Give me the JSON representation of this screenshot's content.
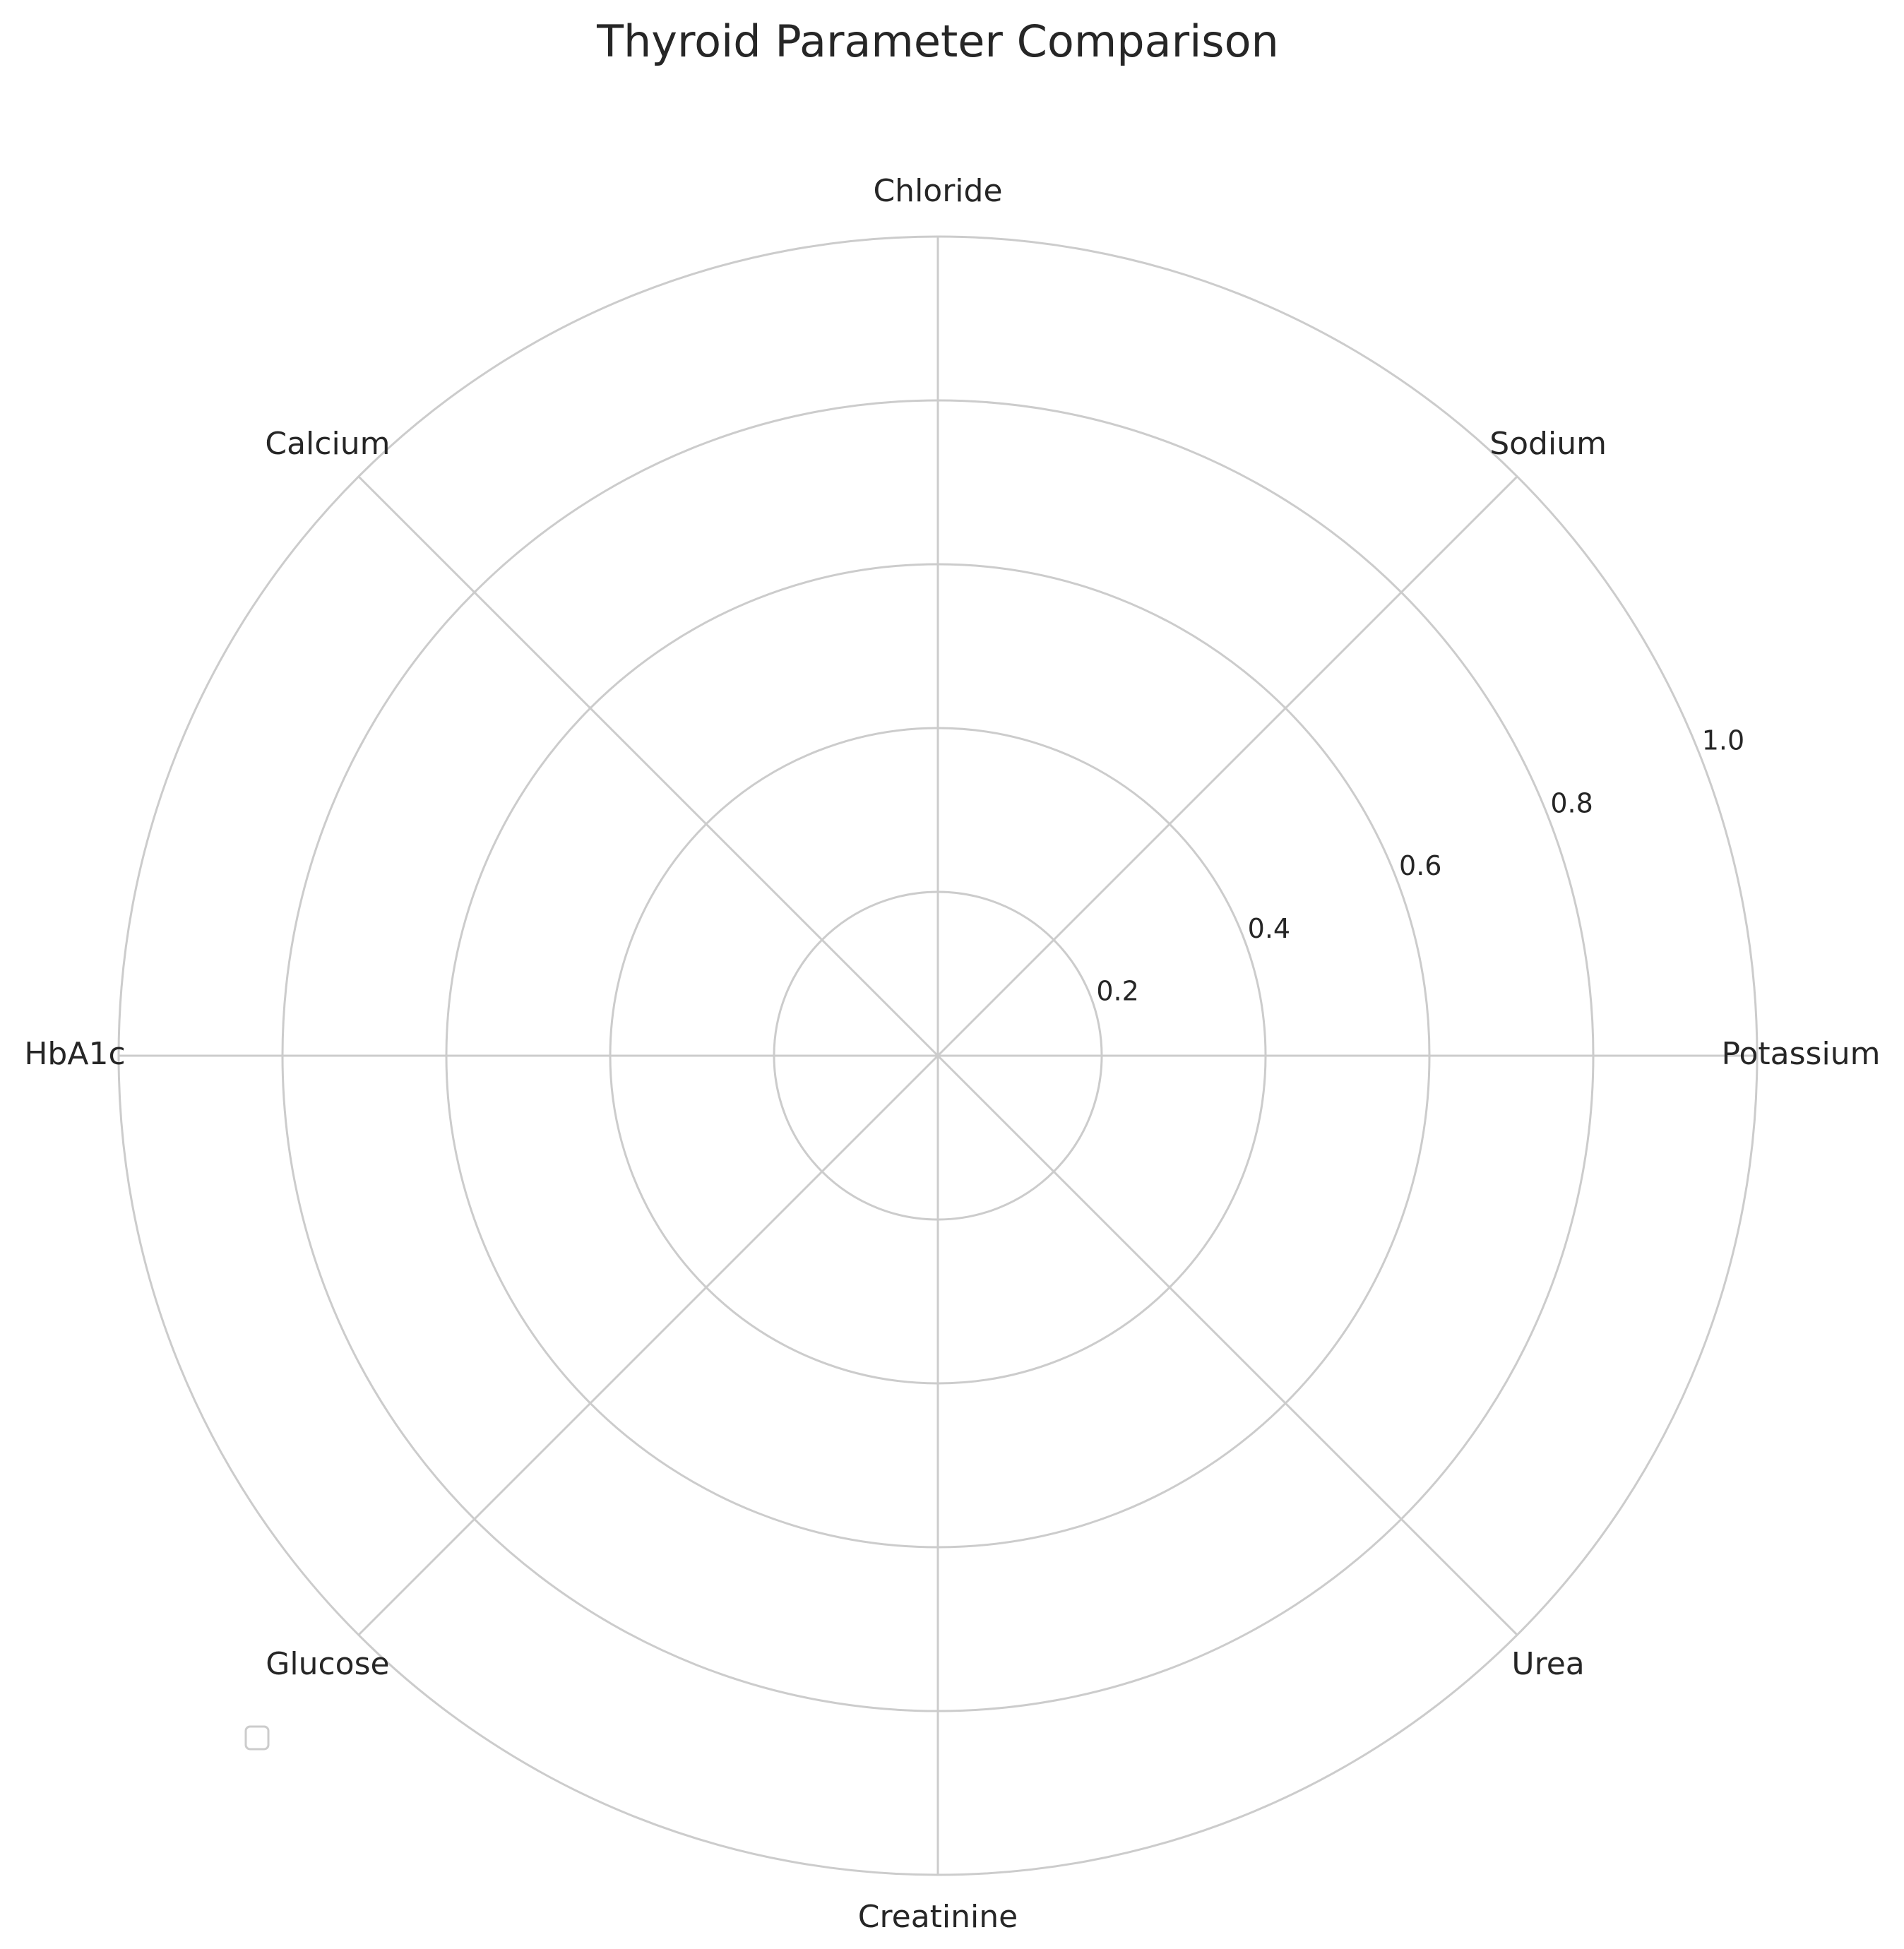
{
  "chart_data": {
    "type": "radar",
    "title": "Thyroid Parameter Comparison",
    "categories": [
      "Potassium",
      "Sodium",
      "Chloride",
      "Calcium",
      "HbA1c",
      "Glucose",
      "Creatinine",
      "Urea"
    ],
    "series": [],
    "r_ticks": [
      "0.2",
      "0.4",
      "0.6",
      "0.8",
      "1.0"
    ],
    "r_tick_values": [
      0.2,
      0.4,
      0.6,
      0.8,
      1.0
    ],
    "rlim": [
      0,
      1.0
    ],
    "grid": true,
    "legend": {
      "location": "lower-left",
      "entries": []
    },
    "colors": {
      "grid": "#cccccc",
      "text": "#262626",
      "background": "#ffffff"
    }
  }
}
